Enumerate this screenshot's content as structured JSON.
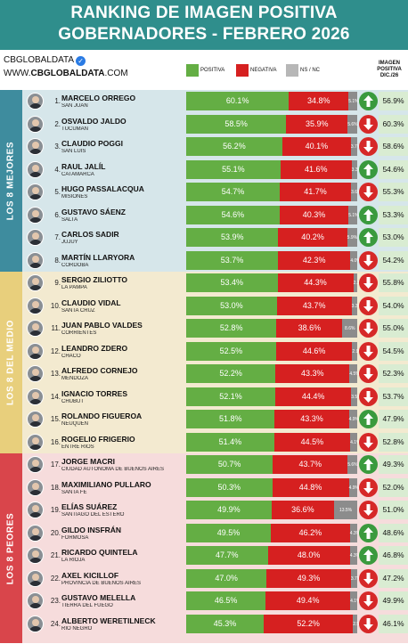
{
  "header": {
    "line1": "RANKING DE IMAGEN POSITIVA",
    "line2": "GOBERNADORES - FEBRERO 2026"
  },
  "brand": {
    "name": "CBGLOBALDATA",
    "site_prefix": "WWW.",
    "site_bold": "CBGLOBALDATA",
    "site_suffix": ".COM",
    "verified_icon": "verified-check-icon"
  },
  "legend": {
    "positive": "POSITIVA",
    "negative": "NEGATIVA",
    "nsnc": "NS / NC"
  },
  "previous_column_title": "IMAGEN POSITIVA DIC./26",
  "colors": {
    "header": "#2f8e8c",
    "positive": "#64ae44",
    "negative": "#d62020",
    "nsnc": "#8c8c8c",
    "arrow_up": "#3a9a3e",
    "arrow_down": "#d62828",
    "group_best": "#3e8c9e",
    "group_middle": "#e8cf7c",
    "group_worst": "#d9454b"
  },
  "groups": [
    {
      "label": "LOS 8 MEJORES",
      "from": 1,
      "to": 8
    },
    {
      "label": "LOS 8 DEL MEDIO",
      "from": 9,
      "to": 16
    },
    {
      "label": "LOS 8 PEORES",
      "from": 17,
      "to": 24
    }
  ],
  "chart_data": {
    "type": "bar",
    "stacked": true,
    "orientation": "horizontal",
    "title": "RANKING DE IMAGEN POSITIVA GOBERNADORES - FEBRERO 2026",
    "series_names": [
      "POSITIVA",
      "NEGATIVA",
      "NS / NC"
    ],
    "rows": [
      {
        "rank": "1.",
        "name": "MARCELO ORREGO",
        "province": "SAN JUAN",
        "positive": 60.1,
        "positive_label": "60.1%",
        "negative": 34.8,
        "negative_label": "34.8%",
        "nsnc": 5.1,
        "nsnc_label": "5.1%",
        "trend": "up",
        "previous": "56.9%"
      },
      {
        "rank": "2.",
        "name": "OSVALDO JALDO",
        "province": "TUCUMÁN",
        "positive": 58.5,
        "positive_label": "58.5%",
        "negative": 35.9,
        "negative_label": "35.9%",
        "nsnc": 5.6,
        "nsnc_label": "5.6%",
        "trend": "down",
        "previous": "60.3%"
      },
      {
        "rank": "3.",
        "name": "CLAUDIO POGGI",
        "province": "SAN LUIS",
        "positive": 56.2,
        "positive_label": "56.2%",
        "negative": 40.1,
        "negative_label": "40.1%",
        "nsnc": 3.7,
        "nsnc_label": "3.7%",
        "trend": "down",
        "previous": "58.6%"
      },
      {
        "rank": "4.",
        "name": "RAUL JALÍL",
        "province": "CATAMARCA",
        "positive": 55.1,
        "positive_label": "55.1%",
        "negative": 41.6,
        "negative_label": "41.6%",
        "nsnc": 3.3,
        "nsnc_label": "3.3%",
        "trend": "up",
        "previous": "54.6%"
      },
      {
        "rank": "5.",
        "name": "HUGO PASSALACQUA",
        "province": "MISIONES",
        "positive": 54.7,
        "positive_label": "54.7%",
        "negative": 41.7,
        "negative_label": "41.7%",
        "nsnc": 3.6,
        "nsnc_label": "3.6%",
        "trend": "down",
        "previous": "55.3%"
      },
      {
        "rank": "6.",
        "name": "GUSTAVO SÁENZ",
        "province": "SALTA",
        "positive": 54.6,
        "positive_label": "54.6%",
        "negative": 40.3,
        "negative_label": "40.3%",
        "nsnc": 5.1,
        "nsnc_label": "5.1%",
        "trend": "up",
        "previous": "53.3%"
      },
      {
        "rank": "7.",
        "name": "CARLOS SADIR",
        "province": "JUJUY",
        "positive": 53.9,
        "positive_label": "53.9%",
        "negative": 40.2,
        "negative_label": "40.2%",
        "nsnc": 5.9,
        "nsnc_label": "5.9%",
        "trend": "up",
        "previous": "53.0%"
      },
      {
        "rank": "8.",
        "name": "MARTÍN LLARYORA",
        "province": "CÓRDOBA",
        "positive": 53.7,
        "positive_label": "53.7%",
        "negative": 42.3,
        "negative_label": "42.3%",
        "nsnc": 4.0,
        "nsnc_label": "4.0%",
        "trend": "down",
        "previous": "54.2%"
      },
      {
        "rank": "9.",
        "name": "SERGIO ZILIOTTO",
        "province": "LA PAMPA",
        "positive": 53.4,
        "positive_label": "53.4%",
        "negative": 44.3,
        "negative_label": "44.3%",
        "nsnc": 2.3,
        "nsnc_label": "2.3%",
        "trend": "down",
        "previous": "55.8%"
      },
      {
        "rank": "10.",
        "name": "CLAUDIO VIDAL",
        "province": "SANTA CRUZ",
        "positive": 53.0,
        "positive_label": "53.0%",
        "negative": 43.7,
        "negative_label": "43.7%",
        "nsnc": 3.3,
        "nsnc_label": "3.3%",
        "trend": "down",
        "previous": "54.0%"
      },
      {
        "rank": "11.",
        "name": "JUAN PABLO VALDES",
        "province": "CORRIENTES",
        "positive": 52.8,
        "positive_label": "52.8%",
        "negative": 38.6,
        "negative_label": "38.6%",
        "nsnc": 8.6,
        "nsnc_label": "8.6%",
        "trend": "down",
        "previous": "55.0%"
      },
      {
        "rank": "12.",
        "name": "LEANDRO ZDERO",
        "province": "CHACO",
        "positive": 52.5,
        "positive_label": "52.5%",
        "negative": 44.6,
        "negative_label": "44.6%",
        "nsnc": 2.9,
        "nsnc_label": "2.9%",
        "trend": "down",
        "previous": "54.5%"
      },
      {
        "rank": "13.",
        "name": "ALFREDO CORNEJO",
        "province": "MENDOZA",
        "positive": 52.2,
        "positive_label": "52.2%",
        "negative": 43.3,
        "negative_label": "43.3%",
        "nsnc": 4.5,
        "nsnc_label": "4.5%",
        "trend": "down",
        "previous": "52.3%"
      },
      {
        "rank": "14.",
        "name": "IGNACIO TORRES",
        "province": "CHUBUT",
        "positive": 52.1,
        "positive_label": "52.1%",
        "negative": 44.4,
        "negative_label": "44.4%",
        "nsnc": 3.5,
        "nsnc_label": "3.5%",
        "trend": "down",
        "previous": "53.7%"
      },
      {
        "rank": "15.",
        "name": "ROLANDO FIGUEROA",
        "province": "NEUQUÉN",
        "positive": 51.8,
        "positive_label": "51.8%",
        "negative": 43.3,
        "negative_label": "43.3%",
        "nsnc": 4.9,
        "nsnc_label": "4.9%",
        "trend": "up",
        "previous": "47.9%"
      },
      {
        "rank": "16.",
        "name": "ROGELIO FRIGERIO",
        "province": "ENTRE RÍOS",
        "positive": 51.4,
        "positive_label": "51.4%",
        "negative": 44.5,
        "negative_label": "44.5%",
        "nsnc": 4.1,
        "nsnc_label": "4.1%",
        "trend": "down",
        "previous": "52.8%"
      },
      {
        "rank": "17.",
        "name": "JORGE MACRI",
        "province": "CIUDAD AUTÓNOMA DE BUENOS AIRES",
        "positive": 50.7,
        "positive_label": "50.7%",
        "negative": 43.7,
        "negative_label": "43.7%",
        "nsnc": 5.6,
        "nsnc_label": "5.6%",
        "trend": "up",
        "previous": "49.3%"
      },
      {
        "rank": "18.",
        "name": "MAXIMILIANO PULLARO",
        "province": "SANTA FE",
        "positive": 50.3,
        "positive_label": "50.3%",
        "negative": 44.8,
        "negative_label": "44.8%",
        "nsnc": 4.9,
        "nsnc_label": "4.9%",
        "trend": "down",
        "previous": "52.0%"
      },
      {
        "rank": "19.",
        "name": "ELÍAS SUÁREZ",
        "province": "SANTIAGO DEL ESTERO",
        "positive": 49.9,
        "positive_label": "49.9%",
        "negative": 36.6,
        "negative_label": "36.6%",
        "nsnc": 13.5,
        "nsnc_label": "13.5%",
        "trend": "down",
        "previous": "51.0%"
      },
      {
        "rank": "20.",
        "name": "GILDO INSFRÁN",
        "province": "FORMOSA",
        "positive": 49.5,
        "positive_label": "49.5%",
        "negative": 46.2,
        "negative_label": "46.2%",
        "nsnc": 4.3,
        "nsnc_label": "4.3%",
        "trend": "up",
        "previous": "48.6%"
      },
      {
        "rank": "21.",
        "name": "RICARDO QUINTELA",
        "province": "LA RIOJA",
        "positive": 47.7,
        "positive_label": "47.7%",
        "negative": 48.0,
        "negative_label": "48.0%",
        "nsnc": 4.3,
        "nsnc_label": "4.3%",
        "trend": "up",
        "previous": "46.8%"
      },
      {
        "rank": "22.",
        "name": "AXEL KICILLOF",
        "province": "PROVINCIA DE BUENOS AIRES",
        "positive": 47.0,
        "positive_label": "47.0%",
        "negative": 49.3,
        "negative_label": "49.3%",
        "nsnc": 3.7,
        "nsnc_label": "3.7%",
        "trend": "down",
        "previous": "47.2%"
      },
      {
        "rank": "23.",
        "name": "GUSTAVO MELELLA",
        "province": "TIERRA DEL FUEGO",
        "positive": 46.5,
        "positive_label": "46.5%",
        "negative": 49.4,
        "negative_label": "49.4%",
        "nsnc": 4.1,
        "nsnc_label": "4.1%",
        "trend": "down",
        "previous": "49.9%"
      },
      {
        "rank": "24.",
        "name": "ALBERTO WERETILNECK",
        "province": "RÍO NEGRO",
        "positive": 45.3,
        "positive_label": "45.3%",
        "negative": 52.2,
        "negative_label": "52.2%",
        "nsnc": 2.5,
        "nsnc_label": "2.5%",
        "trend": "down",
        "previous": "46.1%"
      }
    ]
  }
}
